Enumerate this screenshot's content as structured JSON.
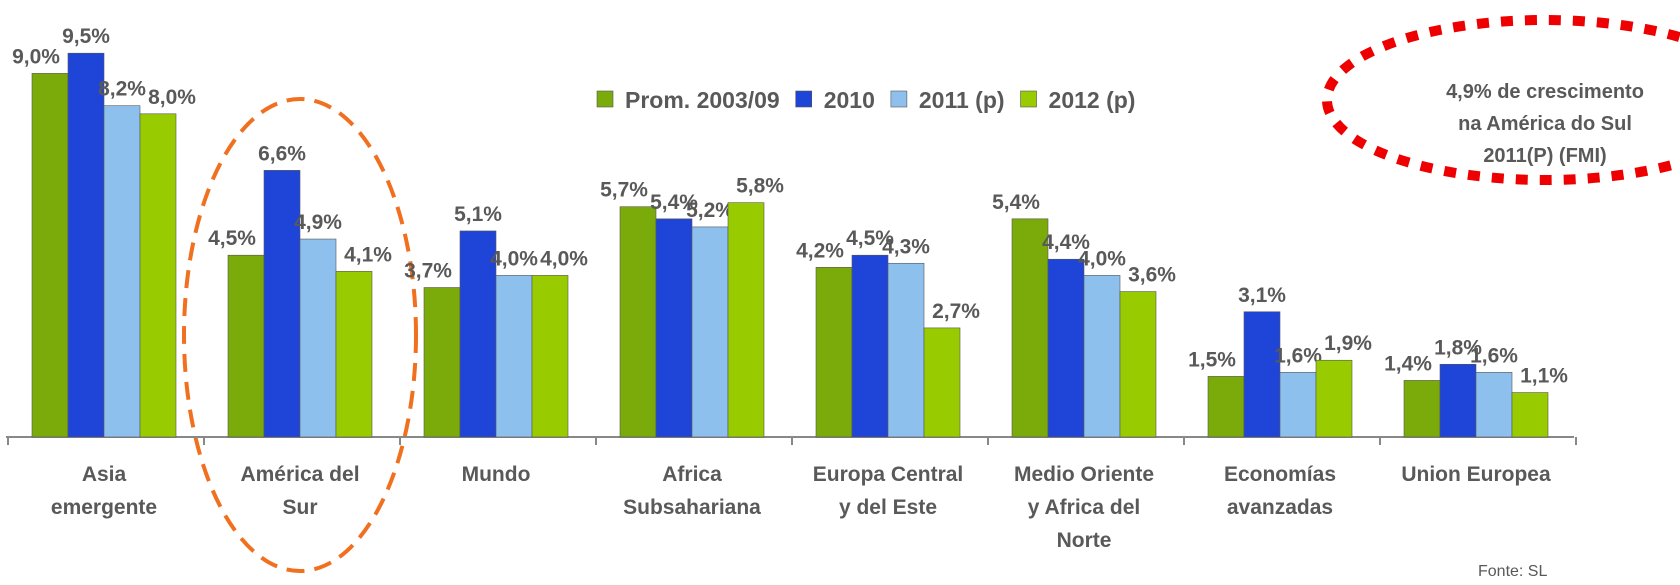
{
  "chart_data": {
    "type": "bar",
    "categories": [
      "Asia\nemergente",
      "América del\nSur",
      "Mundo",
      "Africa\nSubsahariana",
      "Europa Central\ny del Este",
      "Medio Oriente\ny Africa del\nNorte",
      "Economías\navanzadas",
      "Union Europea"
    ],
    "series": [
      {
        "name": "Prom. 2003/09",
        "color": "#7aab0a",
        "values": [
          9.0,
          4.5,
          3.7,
          5.7,
          4.2,
          5.4,
          1.5,
          1.4
        ],
        "value_labels": [
          "9,0%",
          "4,5%",
          "3,7%",
          "5,7%",
          "4,2%",
          "5,4%",
          "1,5%",
          "1,4%"
        ],
        "label_colors": [
          "#595959",
          "#595959",
          "#ff0000",
          "#595959",
          "#595959",
          "#595959",
          "#595959",
          "#595959"
        ]
      },
      {
        "name": "2010",
        "color": "#1f45d8",
        "values": [
          9.5,
          6.6,
          5.1,
          5.4,
          4.5,
          4.4,
          3.1,
          1.8
        ],
        "value_labels": [
          "9,5%",
          "6,6%",
          "5,1%",
          "5,4%",
          "4,5%",
          "4,4%",
          "3,1%",
          "1,8%"
        ],
        "label_colors": [
          "#595959",
          "#595959",
          "#ff0000",
          "#595959",
          "#595959",
          "#595959",
          "#595959",
          "#595959"
        ]
      },
      {
        "name": "2011 (p)",
        "color": "#8ec0ee",
        "values": [
          8.2,
          4.9,
          4.0,
          5.2,
          4.3,
          4.0,
          1.6,
          1.6
        ],
        "value_labels": [
          "8,2%",
          "4,9%",
          "4,0%",
          "5,2%",
          "4,3%",
          "4,0%",
          "1,6%",
          "1,6%"
        ],
        "label_colors": [
          "#595959",
          "#595959",
          "#ff0000",
          "#595959",
          "#595959",
          "#595959",
          "#595959",
          "#595959"
        ]
      },
      {
        "name": "2012 (p)",
        "color": "#99cc00",
        "values": [
          8.0,
          4.1,
          4.0,
          5.8,
          2.7,
          3.6,
          1.9,
          1.1
        ],
        "value_labels": [
          "8,0%",
          "4,1%",
          "4,0%",
          "5,8%",
          "2,7%",
          "3,6%",
          "1,9%",
          "1,1%"
        ],
        "label_colors": [
          "#595959",
          "#595959",
          "#595959",
          "#595959",
          "#595959",
          "#595959",
          "#595959",
          "#595959"
        ]
      }
    ],
    "ylim": [
      0,
      10
    ],
    "annotation": [
      "4,9% de crescimento",
      "na América do Sul",
      "2011(P) (FMI)"
    ],
    "source": "Fonte: SL"
  }
}
